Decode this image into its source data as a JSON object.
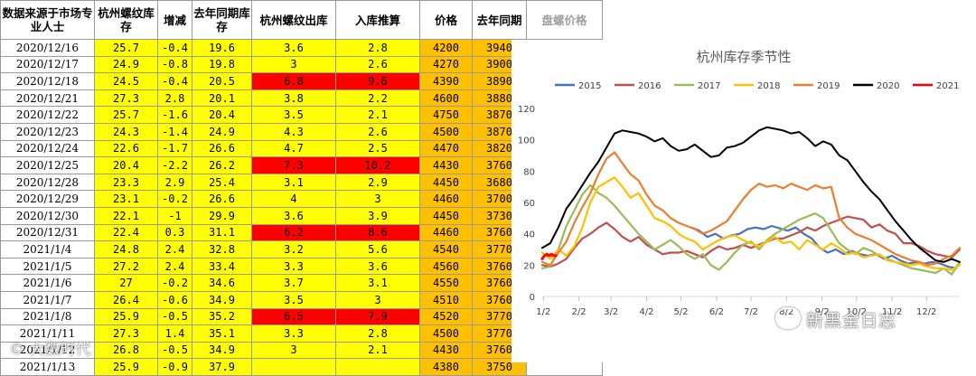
{
  "table": {
    "headers": [
      "数据来源于市场专业人士",
      "杭州螺纹库存",
      "增减",
      "去年同期库存",
      "杭州螺纹出库",
      "入库推算",
      "价格",
      "去年同期",
      "盘螺价格"
    ],
    "rows": [
      {
        "date": "2020/12/16",
        "stock": "25.7",
        "delta": "-0.4",
        "ly_stock": "19.6",
        "out": "3.6",
        "in_est": "2.8",
        "price": "4200",
        "ly_price": "3940",
        "hl": false
      },
      {
        "date": "2020/12/17",
        "stock": "24.9",
        "delta": "-0.8",
        "ly_stock": "19.8",
        "out": "3",
        "in_est": "2.6",
        "price": "4270",
        "ly_price": "3900",
        "hl": false
      },
      {
        "date": "2020/12/18",
        "stock": "24.5",
        "delta": "-0.4",
        "ly_stock": "20.5",
        "out": "6.8",
        "in_est": "9.6",
        "price": "4390",
        "ly_price": "3890",
        "hl": true
      },
      {
        "date": "2020/12/21",
        "stock": "27.3",
        "delta": "2.8",
        "ly_stock": "20.1",
        "out": "3.8",
        "in_est": "2.2",
        "price": "4600",
        "ly_price": "3880",
        "hl": false
      },
      {
        "date": "2020/12/22",
        "stock": "25.7",
        "delta": "-1.6",
        "ly_stock": "20.4",
        "out": "3.5",
        "in_est": "2.1",
        "price": "4750",
        "ly_price": "3870",
        "hl": false
      },
      {
        "date": "2020/12/23",
        "stock": "24.3",
        "delta": "-1.4",
        "ly_stock": "24.9",
        "out": "4.3",
        "in_est": "2.6",
        "price": "4500",
        "ly_price": "3870",
        "hl": false
      },
      {
        "date": "2020/12/24",
        "stock": "22.6",
        "delta": "-1.7",
        "ly_stock": "26.6",
        "out": "4.7",
        "in_est": "2.5",
        "price": "4470",
        "ly_price": "3820",
        "hl": false
      },
      {
        "date": "2020/12/25",
        "stock": "20.4",
        "delta": "-2.2",
        "ly_stock": "26.2",
        "out": "7.3",
        "in_est": "10.2",
        "price": "4430",
        "ly_price": "3760",
        "hl": true
      },
      {
        "date": "2020/12/28",
        "stock": "23.3",
        "delta": "2.9",
        "ly_stock": "25.4",
        "out": "3.1",
        "in_est": "2.9",
        "price": "4450",
        "ly_price": "3680",
        "hl": false
      },
      {
        "date": "2020/12/29",
        "stock": "23.1",
        "delta": "-0.2",
        "ly_stock": "26.6",
        "out": "4",
        "in_est": "3",
        "price": "4460",
        "ly_price": "3700",
        "hl": false
      },
      {
        "date": "2020/12/30",
        "stock": "22.1",
        "delta": "-1",
        "ly_stock": "29.9",
        "out": "3.6",
        "in_est": "3.9",
        "price": "4450",
        "ly_price": "3730",
        "hl": false
      },
      {
        "date": "2020/12/31",
        "stock": "22.4",
        "delta": "0.3",
        "ly_stock": "31.1",
        "out": "6.2",
        "in_est": "8.6",
        "price": "4460",
        "ly_price": "3760",
        "hl": true
      },
      {
        "date": "2021/1/4",
        "stock": "24.8",
        "delta": "2.4",
        "ly_stock": "32.8",
        "out": "3.2",
        "in_est": "5.6",
        "price": "4540",
        "ly_price": "3770",
        "hl": false
      },
      {
        "date": "2021/1/5",
        "stock": "27.2",
        "delta": "2.4",
        "ly_stock": "33.4",
        "out": "3.3",
        "in_est": "3.6",
        "price": "4560",
        "ly_price": "3760",
        "hl": false
      },
      {
        "date": "2021/1/6",
        "stock": "27",
        "delta": "-0.2",
        "ly_stock": "34.6",
        "out": "3.7",
        "in_est": "3.1",
        "price": "4550",
        "ly_price": "3760",
        "hl": false
      },
      {
        "date": "2021/1/7",
        "stock": "26.4",
        "delta": "-0.6",
        "ly_stock": "34.9",
        "out": "3.5",
        "in_est": "3",
        "price": "4510",
        "ly_price": "3760",
        "hl": false
      },
      {
        "date": "2021/1/8",
        "stock": "25.9",
        "delta": "-0.5",
        "ly_stock": "35.2",
        "out": "6.5",
        "in_est": "7.9",
        "price": "4520",
        "ly_price": "3770",
        "hl": true
      },
      {
        "date": "2021/1/11",
        "stock": "27.3",
        "delta": "1.4",
        "ly_stock": "35.1",
        "out": "3.3",
        "in_est": "2.8",
        "price": "4500",
        "ly_price": "3770",
        "hl": false
      },
      {
        "date": "2021/1/12",
        "stock": "26.8",
        "delta": "-0.5",
        "ly_stock": "34.9",
        "out": "3",
        "in_est": "2.1",
        "price": "4430",
        "ly_price": "3760",
        "hl": false
      },
      {
        "date": "2021/1/13",
        "stock": "25.9",
        "delta": "-0.9",
        "ly_stock": "37.9",
        "out": "",
        "in_est": "",
        "price": "4380",
        "ly_price": "3750",
        "hl": false
      }
    ]
  },
  "colors": {
    "yellow": "#ffff00",
    "orange": "#ffc000",
    "red": "#ff0000"
  },
  "chart_data": {
    "type": "line",
    "title": "杭州库存季节性",
    "xlabel": "",
    "ylabel": "",
    "ylim": [
      0,
      120
    ],
    "yticks": [
      0,
      20,
      40,
      60,
      80,
      100,
      120
    ],
    "x_tick_labels": [
      "1/2",
      "2/2",
      "3/2",
      "4/2",
      "5/2",
      "6/2",
      "7/2",
      "8/2",
      "9/2",
      "10/2",
      "11/2",
      "12/2"
    ],
    "x_note": "x values are day-of-year (1 = Jan 1)",
    "legend_position": "top",
    "series": [
      {
        "name": "2015",
        "color": "#4472c4",
        "x": [
          131,
          138,
          145,
          152,
          159,
          166,
          173,
          180,
          187,
          194,
          201,
          215,
          222,
          229,
          236,
          243,
          250,
          257,
          264,
          271,
          278,
          285,
          292,
          299,
          306,
          313,
          320,
          327,
          334,
          341,
          348,
          355,
          362
        ],
        "y": [
          44,
          42,
          38,
          40,
          37,
          39,
          40,
          43,
          44,
          43,
          45,
          42,
          44,
          40,
          37,
          31,
          28,
          30,
          27,
          29,
          27,
          26,
          27,
          24,
          26,
          23,
          21,
          22,
          21,
          22,
          21,
          19,
          18
        ]
      },
      {
        "name": "2016",
        "color": "#c0504d",
        "x": [
          1,
          8,
          15,
          22,
          29,
          36,
          43,
          50,
          57,
          64,
          71,
          78,
          85,
          92,
          99,
          106,
          113,
          120,
          127,
          134,
          141,
          148,
          155,
          162,
          169,
          176,
          183,
          190,
          197,
          204,
          211,
          218,
          225,
          232,
          239,
          246,
          253,
          260,
          267,
          274,
          281,
          288,
          295,
          302,
          309,
          316,
          323,
          330,
          337,
          344,
          351,
          358,
          365
        ],
        "y": [
          20,
          19,
          21,
          24,
          31,
          37,
          40,
          44,
          47,
          43,
          38,
          35,
          38,
          33,
          30,
          27,
          28,
          28,
          29,
          27,
          25,
          29,
          32,
          30,
          31,
          33,
          31,
          33,
          35,
          37,
          37,
          39,
          41,
          44,
          42,
          45,
          47,
          49,
          51,
          50,
          49,
          44,
          46,
          42,
          40,
          34,
          34,
          32,
          29,
          27,
          26,
          25,
          30
        ]
      },
      {
        "name": "2017",
        "color": "#9bbb59",
        "x": [
          1,
          8,
          15,
          22,
          29,
          36,
          43,
          50,
          57,
          64,
          71,
          78,
          85,
          92,
          99,
          106,
          113,
          120,
          127,
          134,
          141,
          148,
          155,
          162,
          169,
          176,
          183,
          190,
          197,
          204,
          211,
          218,
          225,
          232,
          239,
          246,
          253,
          260,
          267,
          274,
          281,
          288,
          295,
          302,
          309,
          316,
          323,
          330,
          337,
          344,
          351,
          358,
          365
        ],
        "y": [
          18,
          19,
          30,
          45,
          55,
          65,
          71,
          66,
          63,
          58,
          52,
          46,
          40,
          35,
          30,
          33,
          36,
          32,
          27,
          24,
          27,
          20,
          17,
          22,
          28,
          33,
          35,
          30,
          36,
          40,
          43,
          46,
          49,
          51,
          53,
          50,
          42,
          34,
          30,
          27,
          31,
          29,
          26,
          24,
          22,
          20,
          18,
          17,
          16,
          15,
          18,
          14,
          22
        ]
      },
      {
        "name": "2018",
        "color": "#ffc000",
        "x": [
          1,
          8,
          15,
          22,
          29,
          36,
          43,
          50,
          57,
          64,
          71,
          78,
          85,
          92,
          99,
          106,
          113,
          120,
          127,
          134,
          141,
          148,
          155,
          162,
          169,
          176,
          183,
          190,
          197,
          204,
          211,
          218,
          225,
          232,
          239,
          246,
          253,
          260,
          267,
          274,
          281,
          288,
          295,
          302,
          309,
          316,
          323,
          330,
          337,
          344,
          351,
          358,
          365
        ],
        "y": [
          28,
          24,
          30,
          26,
          32,
          44,
          60,
          70,
          73,
          76,
          70,
          63,
          66,
          58,
          50,
          48,
          45,
          40,
          37,
          35,
          30,
          33,
          36,
          38,
          39,
          36,
          34,
          32,
          35,
          38,
          34,
          35,
          30,
          36,
          33,
          30,
          34,
          31,
          27,
          28,
          25,
          26,
          27,
          23,
          22,
          21,
          20,
          21,
          19,
          18,
          18,
          17,
          20
        ]
      },
      {
        "name": "2019",
        "color": "#ed7d31",
        "x": [
          1,
          8,
          15,
          22,
          29,
          36,
          43,
          50,
          57,
          64,
          71,
          78,
          85,
          92,
          99,
          106,
          113,
          120,
          127,
          134,
          141,
          148,
          155,
          162,
          169,
          176,
          183,
          190,
          197,
          204,
          211,
          218,
          225,
          232,
          239,
          246,
          253,
          260,
          267,
          274,
          281,
          288,
          295,
          302,
          309,
          316,
          323,
          330,
          337,
          344,
          351,
          358,
          365
        ],
        "y": [
          22,
          20,
          28,
          35,
          47,
          57,
          66,
          78,
          88,
          92,
          85,
          78,
          74,
          65,
          58,
          55,
          50,
          47,
          45,
          43,
          40,
          42,
          45,
          48,
          55,
          62,
          68,
          72,
          70,
          71,
          69,
          72,
          70,
          68,
          71,
          69,
          70,
          50,
          44,
          40,
          38,
          36,
          33,
          30,
          27,
          25,
          23,
          22,
          20,
          21,
          24,
          26,
          31
        ]
      },
      {
        "name": "2020",
        "color": "#000000",
        "x": [
          1,
          8,
          15,
          22,
          29,
          36,
          43,
          50,
          57,
          64,
          71,
          78,
          85,
          92,
          99,
          106,
          113,
          120,
          127,
          134,
          141,
          148,
          155,
          162,
          169,
          176,
          183,
          190,
          197,
          204,
          211,
          218,
          225,
          232,
          239,
          246,
          253,
          260,
          267,
          274,
          281,
          288,
          295,
          302,
          309,
          316,
          323,
          330,
          337,
          344,
          351,
          358,
          365
        ],
        "y": [
          31,
          34,
          44,
          56,
          63,
          71,
          79,
          86,
          95,
          104,
          106,
          105,
          104,
          102,
          99,
          101,
          96,
          93,
          94,
          97,
          93,
          89,
          90,
          95,
          96,
          98,
          102,
          106,
          108,
          107,
          106,
          104,
          105,
          101,
          96,
          99,
          97,
          90,
          87,
          80,
          73,
          67,
          62,
          55,
          48,
          42,
          36,
          31,
          27,
          23,
          22,
          24,
          22
        ]
      },
      {
        "name": "2021",
        "color": "#ff0000",
        "x": [
          1,
          3,
          5,
          7,
          9,
          11,
          13
        ],
        "y": [
          24,
          26,
          27,
          26,
          27,
          26,
          26
        ]
      }
    ]
  },
  "watermark": {
    "brand": "新黑金日志",
    "footer": "© 大数时代"
  }
}
